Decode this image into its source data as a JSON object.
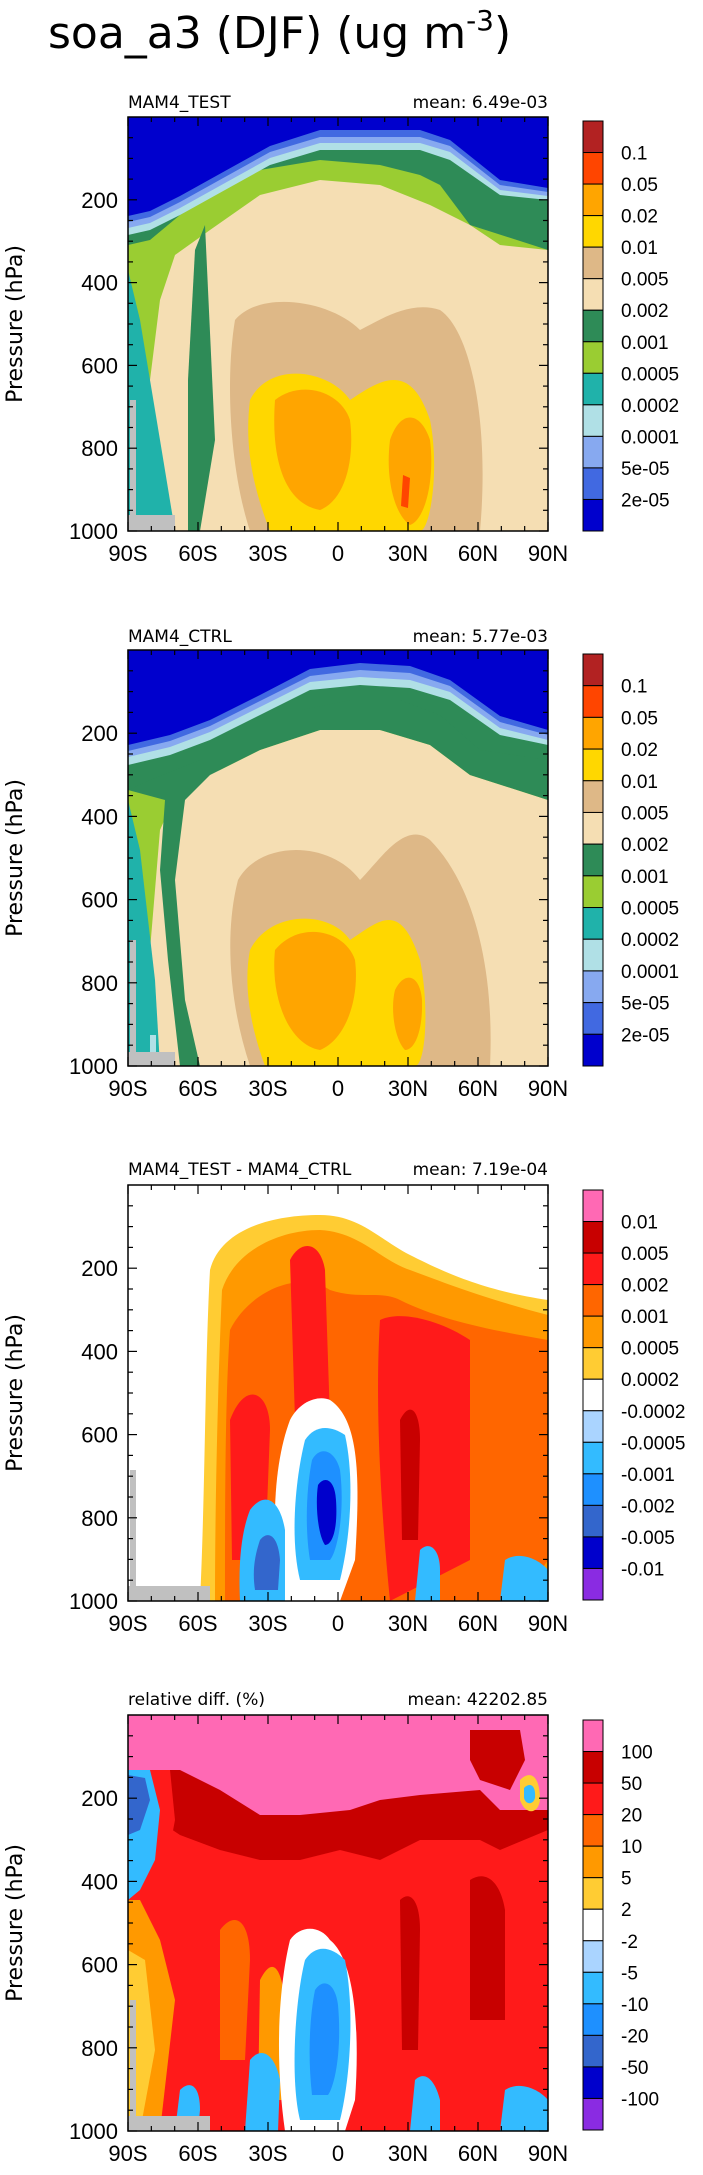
{
  "figure_title": "soa_a3 (DJF) (ug m",
  "figure_title_exp": "-3",
  "figure_title_close": ")",
  "chart_data": [
    {
      "type": "heatmap",
      "panel_title": "MAM4_TEST",
      "mean_label": "mean: 6.49e-03",
      "xlabel": "",
      "ylabel": "Pressure (hPa)",
      "x_ticks": [
        "90S",
        "60S",
        "30S",
        "0",
        "30N",
        "60N",
        "90N"
      ],
      "y_ticks": [
        "200",
        "400",
        "600",
        "800",
        "1000"
      ],
      "y_tick_values": [
        200,
        400,
        600,
        800,
        1000
      ],
      "xlim": [
        -90,
        90
      ],
      "ylim": [
        1000,
        0
      ],
      "colorbar_labels": [
        "0.1",
        "0.05",
        "0.02",
        "0.01",
        "0.005",
        "0.002",
        "0.001",
        "0.0005",
        "0.0002",
        "0.0001",
        "5e-05",
        "2e-05"
      ],
      "colorbar_colors": [
        "#b22222",
        "#ff4500",
        "#ffa500",
        "#ffd700",
        "#deb887",
        "#f5deb3",
        "#2e8b57",
        "#9acd32",
        "#20b2aa",
        "#b0e0e6",
        "#87a9f0",
        "#4169e1",
        "#0000cd"
      ]
    },
    {
      "type": "heatmap",
      "panel_title": "MAM4_CTRL",
      "mean_label": "mean: 5.77e-03",
      "xlabel": "",
      "ylabel": "Pressure (hPa)",
      "x_ticks": [
        "90S",
        "60S",
        "30S",
        "0",
        "30N",
        "60N",
        "90N"
      ],
      "y_ticks": [
        "200",
        "400",
        "600",
        "800",
        "1000"
      ],
      "y_tick_values": [
        200,
        400,
        600,
        800,
        1000
      ],
      "xlim": [
        -90,
        90
      ],
      "ylim": [
        1000,
        0
      ],
      "colorbar_labels": [
        "0.1",
        "0.05",
        "0.02",
        "0.01",
        "0.005",
        "0.002",
        "0.001",
        "0.0005",
        "0.0002",
        "0.0001",
        "5e-05",
        "2e-05"
      ],
      "colorbar_colors": [
        "#b22222",
        "#ff4500",
        "#ffa500",
        "#ffd700",
        "#deb887",
        "#f5deb3",
        "#2e8b57",
        "#9acd32",
        "#20b2aa",
        "#b0e0e6",
        "#87a9f0",
        "#4169e1",
        "#0000cd"
      ]
    },
    {
      "type": "heatmap",
      "panel_title": "MAM4_TEST - MAM4_CTRL",
      "mean_label": "mean: 7.19e-04",
      "xlabel": "",
      "ylabel": "Pressure (hPa)",
      "x_ticks": [
        "90S",
        "60S",
        "30S",
        "0",
        "30N",
        "60N",
        "90N"
      ],
      "y_ticks": [
        "200",
        "400",
        "600",
        "800",
        "1000"
      ],
      "y_tick_values": [
        200,
        400,
        600,
        800,
        1000
      ],
      "xlim": [
        -90,
        90
      ],
      "ylim": [
        1000,
        0
      ],
      "colorbar_labels": [
        "0.01",
        "0.005",
        "0.002",
        "0.001",
        "0.0005",
        "0.0002",
        "-0.0002",
        "-0.0005",
        "-0.001",
        "-0.002",
        "-0.005",
        "-0.01"
      ],
      "colorbar_colors": [
        "#ff69b4",
        "#c80000",
        "#ff1a1a",
        "#ff6600",
        "#ff9900",
        "#ffcc33",
        "#ffffff",
        "#aad4ff",
        "#33bbff",
        "#1e90ff",
        "#3366cc",
        "#0000cc",
        "#8a2be2"
      ]
    },
    {
      "type": "heatmap",
      "panel_title": "relative diff. (%)",
      "mean_label": "mean: 42202.85",
      "xlabel": "",
      "ylabel": "Pressure (hPa)",
      "x_ticks": [
        "90S",
        "60S",
        "30S",
        "0",
        "30N",
        "60N",
        "90N"
      ],
      "y_ticks": [
        "200",
        "400",
        "600",
        "800",
        "1000"
      ],
      "y_tick_values": [
        200,
        400,
        600,
        800,
        1000
      ],
      "xlim": [
        -90,
        90
      ],
      "ylim": [
        1000,
        0
      ],
      "colorbar_labels": [
        "100",
        "50",
        "20",
        "10",
        "5",
        "2",
        "-2",
        "-5",
        "-10",
        "-20",
        "-50",
        "-100"
      ],
      "colorbar_colors": [
        "#ff69b4",
        "#c80000",
        "#ff1a1a",
        "#ff6600",
        "#ff9900",
        "#ffcc33",
        "#ffffff",
        "#aad4ff",
        "#33bbff",
        "#1e90ff",
        "#3366cc",
        "#0000cc",
        "#8a2be2"
      ]
    }
  ]
}
